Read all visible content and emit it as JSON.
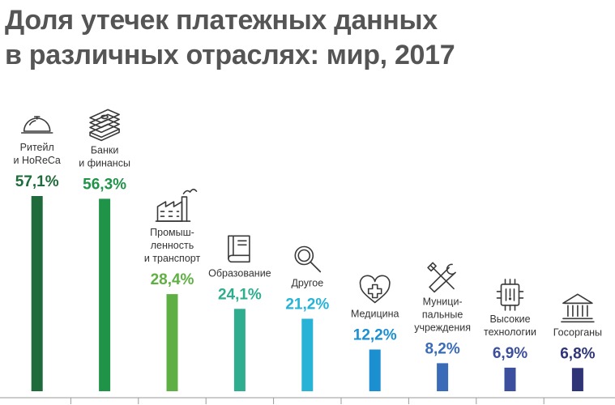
{
  "title_lines": [
    "Доля утечек платежных данных",
    "в различных отраслях: мир, 2017"
  ],
  "chart_data": {
    "type": "bar",
    "title": "Доля утечек платежных данных в различных отраслях: мир, 2017",
    "value_format": "percent-comma",
    "categories": [
      {
        "label_lines": [
          "Ритейл",
          "и HoReCa"
        ],
        "value": 57.1,
        "value_text": "57,1%",
        "color": "#1f6b3b",
        "icon": "cloche-icon"
      },
      {
        "label_lines": [
          "Банки",
          "и финансы"
        ],
        "value": 56.3,
        "value_text": "56,3%",
        "color": "#1f9448",
        "icon": "money-stack-icon"
      },
      {
        "label_lines": [
          "Промыш-",
          "ленность",
          "и транспорт"
        ],
        "value": 28.4,
        "value_text": "28,4%",
        "color": "#5fb044",
        "icon": "factory-icon"
      },
      {
        "label_lines": [
          "Образование"
        ],
        "value": 24.1,
        "value_text": "24,1%",
        "color": "#2eae8e",
        "icon": "book-icon"
      },
      {
        "label_lines": [
          "Другое"
        ],
        "value": 21.2,
        "value_text": "21,2%",
        "color": "#27b3d6",
        "icon": "magnifier-icon"
      },
      {
        "label_lines": [
          "Медицина"
        ],
        "value": 12.2,
        "value_text": "12,2%",
        "color": "#1c8fd0",
        "icon": "medical-heart-icon"
      },
      {
        "label_lines": [
          "Муници-",
          "пальные",
          "учреждения"
        ],
        "value": 8.2,
        "value_text": "8,2%",
        "color": "#3a6bb8",
        "icon": "tools-icon"
      },
      {
        "label_lines": [
          "Высокие",
          "технологии"
        ],
        "value": 6.9,
        "value_text": "6,9%",
        "color": "#3c4f9e",
        "icon": "chip-icon"
      },
      {
        "label_lines": [
          "Госорганы"
        ],
        "value": 6.8,
        "value_text": "6,8%",
        "color": "#2f3477",
        "icon": "government-building-icon"
      }
    ],
    "axis_color": "#9a9a9a",
    "ylim": [
      0,
      57.1
    ],
    "grid": false,
    "legend": "none"
  }
}
